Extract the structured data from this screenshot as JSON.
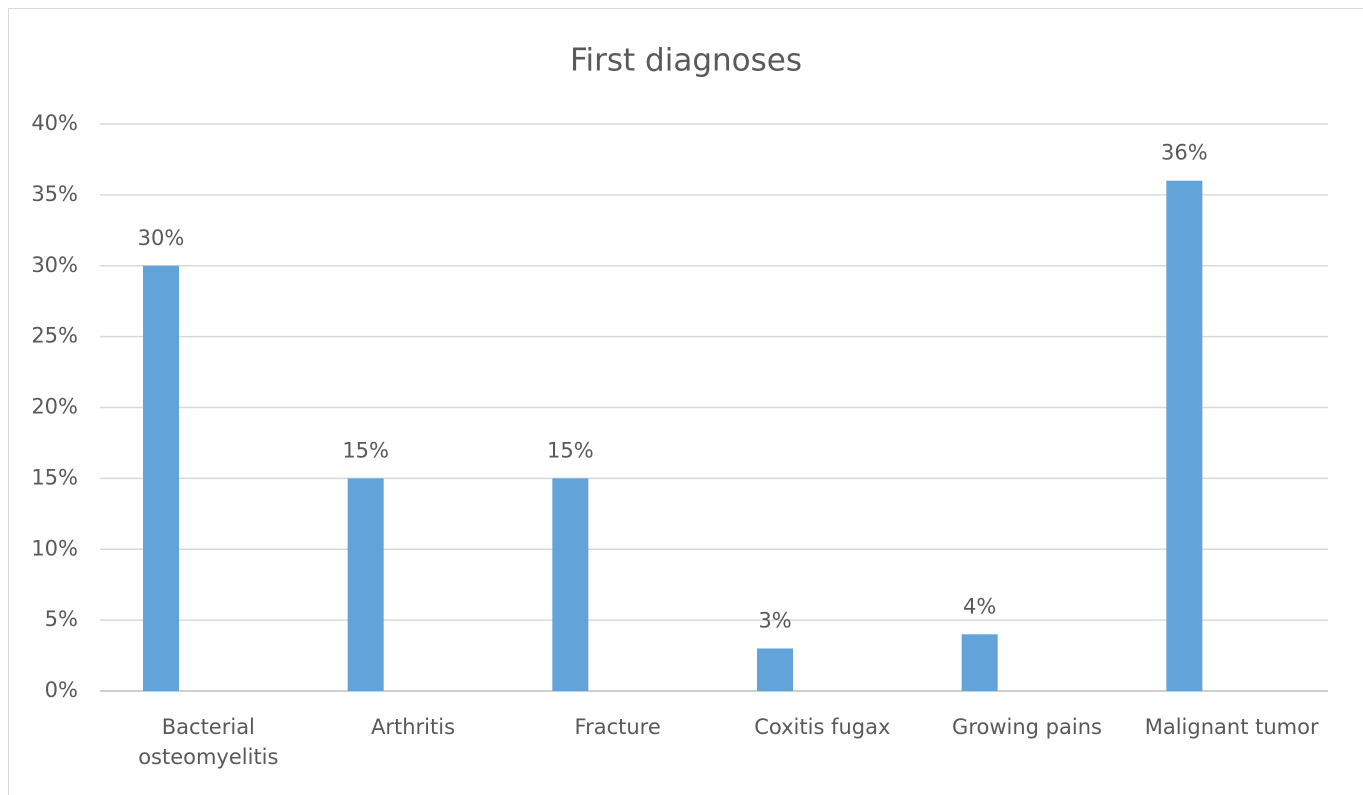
{
  "chart_data": {
    "type": "bar",
    "title": "First diagnoses",
    "categories": [
      "Bacterial osteomyelitis",
      "Arthritis",
      "Fracture",
      "Coxitis fugax",
      "Growing pains",
      "Malignant tumor"
    ],
    "values": [
      30,
      15,
      15,
      3,
      4,
      36
    ],
    "value_labels": [
      "30%",
      "15%",
      "15%",
      "3%",
      "4%",
      "36%"
    ],
    "color": "#62a3d9",
    "ylim": [
      0,
      40
    ],
    "yticks": [
      {
        "value": 0,
        "label": "0%"
      },
      {
        "value": 5,
        "label": "5%"
      },
      {
        "value": 10,
        "label": "10%"
      },
      {
        "value": 15,
        "label": "15%"
      },
      {
        "value": 20,
        "label": "20%"
      },
      {
        "value": 25,
        "label": "25%"
      },
      {
        "value": 30,
        "label": "30%"
      },
      {
        "value": 35,
        "label": "35%"
      },
      {
        "value": 40,
        "label": "40%"
      }
    ],
    "grid": true
  }
}
